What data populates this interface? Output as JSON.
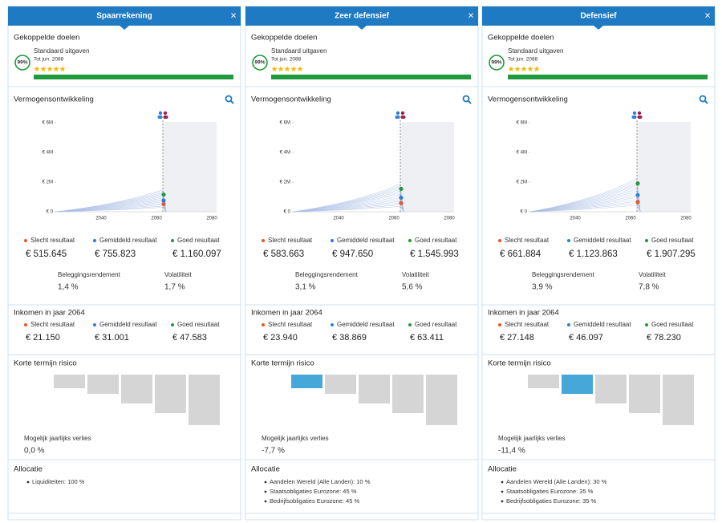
{
  "columns": [
    {
      "title": "Spaarrekening",
      "close": "×",
      "goals": {
        "heading": "Gekoppelde doelen",
        "probability": "99%",
        "goal": "Standaard uitgaven",
        "until": "Tot jun. 2088"
      },
      "wealth": {
        "heading": "Vermogensontwikkeling",
        "yticks": [
          {
            "value": 6000000,
            "label": "€ 6M"
          },
          {
            "value": 4000000,
            "label": "€ 4M"
          },
          {
            "value": 2000000,
            "label": "€ 2M"
          },
          {
            "value": 0,
            "label": "€ 0"
          }
        ],
        "xticks": [
          2040,
          2060,
          2080
        ],
        "results": [
          {
            "name": "Slecht resultaat",
            "color": "#e8582a",
            "value": "€ 515.645"
          },
          {
            "name": "Gemiddeld resultaat",
            "color": "#2f7ed8",
            "value": "€ 755.823"
          },
          {
            "name": "Goed resultaat",
            "color": "#1e9a3c",
            "value": "€ 1.160.097"
          }
        ],
        "return_label": "Beleggingsrendement",
        "return_value": "1,4 %",
        "volatility_label": "Volatiliteit",
        "volatility_value": "1,7 %"
      },
      "income": {
        "heading": "Inkomen in jaar 2064",
        "results": [
          {
            "name": "Slecht resultaat",
            "color": "#e8582a",
            "value": "€ 21.150"
          },
          {
            "name": "Gemiddeld resultaat",
            "color": "#2f7ed8",
            "value": "€ 31.001"
          },
          {
            "name": "Goed resultaat",
            "color": "#1e9a3c",
            "value": "€ 47.583"
          }
        ]
      },
      "risk": {
        "heading": "Korte termijn risico",
        "highlight": null,
        "loss_label": "Mogelijk jaarlijks verlies",
        "loss_value": "0,0 %"
      },
      "allocation": {
        "heading": "Allocatie",
        "items": [
          "Liquiditeiten: 100 %"
        ]
      }
    },
    {
      "title": "Zeer defensief",
      "close": "×",
      "goals": {
        "heading": "Gekoppelde doelen",
        "probability": "99%",
        "goal": "Standaard uitgaven",
        "until": "Tot jun. 2088"
      },
      "wealth": {
        "heading": "Vermogensontwikkeling",
        "yticks": [
          {
            "value": 6000000,
            "label": "€ 6M"
          },
          {
            "value": 4000000,
            "label": "€ 4M"
          },
          {
            "value": 2000000,
            "label": "€ 2M"
          },
          {
            "value": 0,
            "label": "€ 0"
          }
        ],
        "xticks": [
          2040,
          2060,
          2080
        ],
        "results": [
          {
            "name": "Slecht resultaat",
            "color": "#e8582a",
            "value": "€ 583.663"
          },
          {
            "name": "Gemiddeld resultaat",
            "color": "#2f7ed8",
            "value": "€ 947.650"
          },
          {
            "name": "Goed resultaat",
            "color": "#1e9a3c",
            "value": "€ 1.545.993"
          }
        ],
        "return_label": "Beleggingsrendement",
        "return_value": "3,1 %",
        "volatility_label": "Volatiliteit",
        "volatility_value": "5,6 %"
      },
      "income": {
        "heading": "Inkomen in jaar 2064",
        "results": [
          {
            "name": "Slecht resultaat",
            "color": "#e8582a",
            "value": "€ 23.940"
          },
          {
            "name": "Gemiddeld resultaat",
            "color": "#2f7ed8",
            "value": "€ 38.869"
          },
          {
            "name": "Goed resultaat",
            "color": "#1e9a3c",
            "value": "€ 63.411"
          }
        ]
      },
      "risk": {
        "heading": "Korte termijn risico",
        "highlight": 0,
        "loss_label": "Mogelijk jaarlijks verlies",
        "loss_value": "-7,7 %"
      },
      "allocation": {
        "heading": "Allocatie",
        "items": [
          "Aandelen Wereld (Alle Landen): 10 %",
          "Staatsobligaties Eurozone: 45 %",
          "Bedrijfsobligaties Eurozone: 45 %"
        ]
      }
    },
    {
      "title": "Defensief",
      "close": "×",
      "goals": {
        "heading": "Gekoppelde doelen",
        "probability": "99%",
        "goal": "Standaard uitgaven",
        "until": "Tot jun. 2088"
      },
      "wealth": {
        "heading": "Vermogensontwikkeling",
        "yticks": [
          {
            "value": 6000000,
            "label": "€ 6M"
          },
          {
            "value": 4000000,
            "label": "€ 4M"
          },
          {
            "value": 2000000,
            "label": "€ 2M"
          },
          {
            "value": 0,
            "label": "€ 0"
          }
        ],
        "xticks": [
          2040,
          2060,
          2080
        ],
        "results": [
          {
            "name": "Slecht resultaat",
            "color": "#e8582a",
            "value": "€ 661.884"
          },
          {
            "name": "Gemiddeld resultaat",
            "color": "#2f7ed8",
            "value": "€ 1.123.863"
          },
          {
            "name": "Goed resultaat",
            "color": "#1e9a3c",
            "value": "€ 1.907.295"
          }
        ],
        "return_label": "Beleggingsrendement",
        "return_value": "3,9 %",
        "volatility_label": "Volatiliteit",
        "volatility_value": "7,8 %"
      },
      "income": {
        "heading": "Inkomen in jaar 2064",
        "results": [
          {
            "name": "Slecht resultaat",
            "color": "#e8582a",
            "value": "€ 27.148"
          },
          {
            "name": "Gemiddeld resultaat",
            "color": "#2f7ed8",
            "value": "€ 46.097"
          },
          {
            "name": "Goed resultaat",
            "color": "#1e9a3c",
            "value": "€ 78.230"
          }
        ]
      },
      "risk": {
        "heading": "Korte termijn risico",
        "highlight": 1,
        "loss_label": "Mogelijk jaarlijks verlies",
        "loss_value": "-11,4 %"
      },
      "allocation": {
        "heading": "Allocatie",
        "items": [
          "Aandelen Wereld (Alle Landen): 30 %",
          "Staatsobligaties Eurozone: 35 %",
          "Bedrijfsobligaties Eurozone: 35 %"
        ]
      }
    }
  ]
}
